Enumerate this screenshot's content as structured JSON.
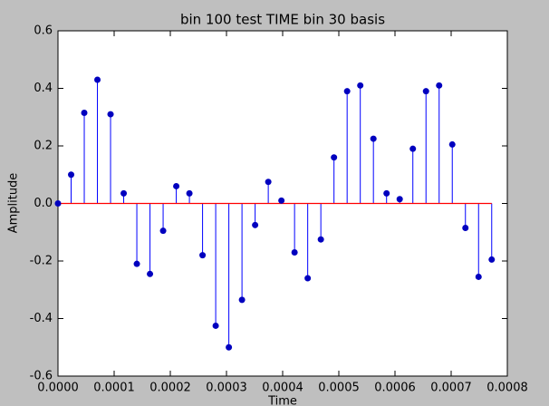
{
  "chart_data": {
    "type": "stem",
    "title": "bin 100 test TIME bin 30 basis",
    "xlabel": "Time",
    "ylabel": "Amplitude",
    "x": [
      0,
      2.34e-05,
      4.68e-05,
      7.02e-05,
      9.36e-05,
      0.000117,
      0.0001404,
      0.0001638,
      0.0001872,
      0.0002106,
      0.000234,
      0.0002574,
      0.0002808,
      0.0003042,
      0.0003276,
      0.000351,
      0.0003744,
      0.0003978,
      0.0004212,
      0.0004446,
      0.000468,
      0.0004914,
      0.0005148,
      0.0005382,
      0.0005616,
      0.000585,
      0.0006084,
      0.0006318,
      0.0006552,
      0.0006786,
      0.000702,
      0.0007254,
      0.0007488,
      0.0007722
    ],
    "values": [
      0.0,
      0.1,
      0.315,
      0.43,
      0.31,
      0.035,
      -0.21,
      -0.245,
      -0.095,
      0.06,
      0.035,
      -0.18,
      -0.425,
      -0.5,
      -0.335,
      -0.075,
      0.075,
      0.01,
      -0.17,
      -0.26,
      -0.125,
      0.16,
      0.39,
      0.41,
      0.225,
      0.035,
      0.015,
      0.19,
      0.39,
      0.41,
      0.205,
      -0.085,
      -0.255,
      -0.195
    ],
    "color": "#0000ff",
    "marker_color": "#0000bf",
    "baseline_color": "#ff0000",
    "xlim": [
      0,
      0.0008
    ],
    "xticks": [
      {
        "value": 0,
        "label": "0.0000"
      },
      {
        "value": 0.0001,
        "label": "0.0001"
      },
      {
        "value": 0.0002,
        "label": "0.0002"
      },
      {
        "value": 0.0003,
        "label": "0.0003"
      },
      {
        "value": 0.0004,
        "label": "0.0004"
      },
      {
        "value": 0.0005,
        "label": "0.0005"
      },
      {
        "value": 0.0006,
        "label": "0.0006"
      },
      {
        "value": 0.0007,
        "label": "0.0007"
      },
      {
        "value": 0.0008,
        "label": "0.0008"
      }
    ],
    "ylim": [
      -0.6,
      0.6
    ],
    "yticks": [
      -0.6,
      -0.4,
      -0.2,
      {
        "value": 0,
        "label": "0.0"
      },
      0.2,
      0.4,
      0.6
    ]
  }
}
